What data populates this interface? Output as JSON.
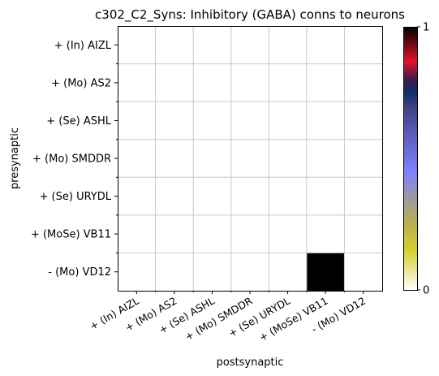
{
  "chart_data": {
    "type": "heatmap",
    "title": "c302_C2_Syns: Inhibitory (GABA) conns to neurons",
    "xlabel": "postsynaptic",
    "ylabel": "presynaptic",
    "x_categories": [
      "+ (In) AIZL",
      "+ (Mo) AS2",
      "+ (Se) ASHL",
      "+ (Mo) SMDDR",
      "+ (Se) URYDL",
      "+ (MoSe) VB11",
      "- (Mo) VD12"
    ],
    "y_categories": [
      "+ (In) AIZL",
      "+ (Mo) AS2",
      "+ (Se) ASHL",
      "+ (Mo) SMDDR",
      "+ (Se) URYDL",
      "+ (MoSe) VB11",
      "- (Mo) VD12"
    ],
    "values": [
      [
        0,
        0,
        0,
        0,
        0,
        0,
        0
      ],
      [
        0,
        0,
        0,
        0,
        0,
        0,
        0
      ],
      [
        0,
        0,
        0,
        0,
        0,
        0,
        0
      ],
      [
        0,
        0,
        0,
        0,
        0,
        0,
        0
      ],
      [
        0,
        0,
        0,
        0,
        0,
        0,
        0
      ],
      [
        0,
        0,
        0,
        0,
        0,
        0,
        0
      ],
      [
        0,
        0,
        0,
        0,
        0,
        1,
        0
      ]
    ],
    "colorbar": {
      "range": [
        0,
        1
      ],
      "tick_labels": [
        "0",
        "1"
      ],
      "colormap": "gist_stern_r-like",
      "stops": [
        {
          "v": 0.0,
          "c": "#ffffff"
        },
        {
          "v": 0.15,
          "c": "#d4cf2e"
        },
        {
          "v": 0.25,
          "c": "#b9b14d"
        },
        {
          "v": 0.35,
          "c": "#9a9aa2"
        },
        {
          "v": 0.45,
          "c": "#8080ff"
        },
        {
          "v": 0.6,
          "c": "#5a5ab8"
        },
        {
          "v": 0.7,
          "c": "#3f4080"
        },
        {
          "v": 0.75,
          "c": "#10306a"
        },
        {
          "v": 0.8,
          "c": "#3a1a4a"
        },
        {
          "v": 0.87,
          "c": "#e4112a"
        },
        {
          "v": 1.0,
          "c": "#000000"
        }
      ]
    },
    "grid": true,
    "grid_color": "#c8c8c8"
  }
}
